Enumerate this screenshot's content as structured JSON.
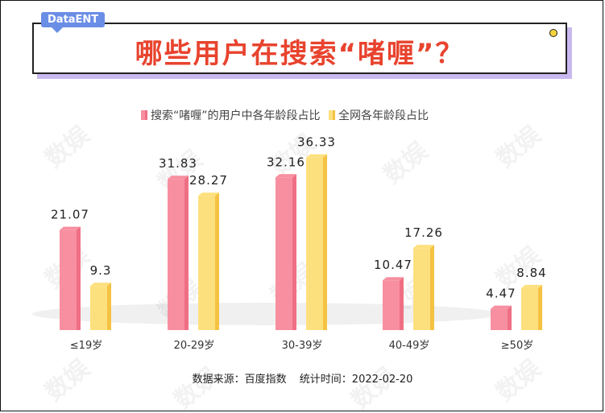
{
  "brand": "DataENT",
  "title": "哪些用户在搜索“啫喱”？",
  "watermark": "数娱",
  "colors": {
    "series1": "#f78fa0",
    "series1_dark": "#ef6f84",
    "series2": "#fde07e",
    "series2_dark": "#f5c242",
    "title": "#e8432e"
  },
  "footer": {
    "source": "数据来源：百度指数",
    "time": "统计时间：2022-02-20"
  },
  "chart_data": {
    "type": "bar",
    "categories": [
      "≤19岁",
      "20-29岁",
      "30-39岁",
      "40-49岁",
      "≥50岁"
    ],
    "series": [
      {
        "name": "搜索“啫喱”的用户中各年龄段占比",
        "values": [
          21.07,
          31.83,
          32.16,
          10.47,
          4.47
        ],
        "labels": [
          "21.07",
          "31.83",
          "32.16",
          "10.47",
          "4.47"
        ]
      },
      {
        "name": "全网各年龄段占比",
        "values": [
          9.3,
          28.27,
          36.33,
          17.26,
          8.84
        ],
        "labels": [
          "9.3",
          "28.27",
          "36.33",
          "17.26",
          "8.84"
        ]
      }
    ],
    "ylim": [
      0,
      40
    ],
    "grid": false,
    "legend": "top-center"
  }
}
